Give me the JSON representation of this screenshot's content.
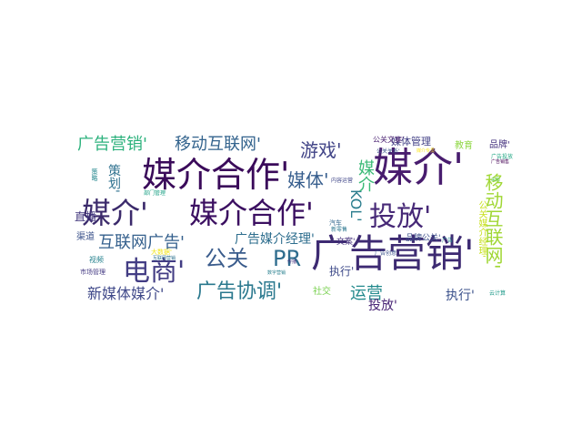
{
  "words": [
    {
      "text": "媒介'",
      "color": "#481c6e"
    },
    {
      "text": "媒介合作'",
      "color": "#3a0a5a"
    },
    {
      "text": "媒介'",
      "color": "#3b2a6b"
    },
    {
      "text": "媒介合作'",
      "color": "#3b0f61"
    },
    {
      "text": "广告营销'",
      "color": "#3d2a72"
    },
    {
      "text": "电商'",
      "color": "#433d84"
    },
    {
      "text": "移动互联网'",
      "color": "#a0d734"
    },
    {
      "text": "投放'",
      "color": "#472977"
    },
    {
      "text": "公关",
      "color": "#3a5c8c"
    },
    {
      "text": "PR",
      "color": "#2f6d8e"
    },
    {
      "text": "广告营销'",
      "color": "#2db27d"
    },
    {
      "text": "移动互联网'",
      "color": "#33638d"
    },
    {
      "text": "游戏'",
      "color": "#414487"
    },
    {
      "text": "媒体'",
      "color": "#365d8d"
    },
    {
      "text": "KOL'",
      "color": "#2c7e8e"
    },
    {
      "text": "媒介",
      "color": "#3aba76"
    },
    {
      "text": "互联网广告'",
      "color": "#35608d"
    },
    {
      "text": "广告协调'",
      "color": "#2a788e"
    },
    {
      "text": "新媒体媒介'",
      "color": "#3f4889"
    },
    {
      "text": "广告媒介经理'",
      "color": "#2e6e8e"
    },
    {
      "text": "运营",
      "color": "#238a8d"
    },
    {
      "text": "投放'",
      "color": "#482475"
    },
    {
      "text": "执行'",
      "color": "#3b518b"
    },
    {
      "text": "策划'",
      "color": "#2d708e"
    },
    {
      "text": "执行'",
      "color": "#3e4a89"
    },
    {
      "text": "社交",
      "color": "#7ad151"
    },
    {
      "text": "品牌'",
      "color": "#46337f"
    },
    {
      "text": "媒体管理",
      "color": "#424086"
    },
    {
      "text": "教育",
      "color": "#8fd744"
    },
    {
      "text": "公关文案'",
      "color": "#481f70"
    },
    {
      "text": "公关媒介经理'",
      "color": "#c8e020"
    },
    {
      "text": "直播",
      "color": "#44397f"
    },
    {
      "text": "渠道",
      "color": "#3b528b"
    },
    {
      "text": "文案'",
      "color": "#46327e"
    },
    {
      "text": "品牌公关'",
      "color": "#3c4f8a"
    },
    {
      "text": "汽车",
      "color": "#31678e"
    },
    {
      "text": "市场管理",
      "color": "#443a83"
    },
    {
      "text": "视频",
      "color": "#26828e"
    },
    {
      "text": "大数据'",
      "color": "#f1e51d"
    },
    {
      "text": "新零售",
      "color": "#2a768e"
    },
    {
      "text": "广告创意",
      "color": "#3b528b"
    },
    {
      "text": "广告投放",
      "color": "#22a785"
    },
    {
      "text": "公关关系'",
      "color": "#3a538b"
    },
    {
      "text": "广告",
      "color": "#25858e"
    },
    {
      "text": "广告销售",
      "color": "#440154"
    },
    {
      "text": "云计算",
      "color": "#1f9a8a"
    },
    {
      "text": "策略",
      "color": "#24878e"
    },
    {
      "text": "部门管理",
      "color": "#1fa287"
    },
    {
      "text": "内容运营",
      "color": "#404688"
    },
    {
      "text": "互联网营销",
      "color": "#2c718e"
    },
    {
      "text": "采购",
      "color": "#5ec962"
    },
    {
      "text": "数字营销",
      "color": "#277f8e"
    },
    {
      "text": "传播",
      "color": "#453581"
    },
    {
      "text": "媒介专员",
      "color": "#fde725"
    }
  ]
}
